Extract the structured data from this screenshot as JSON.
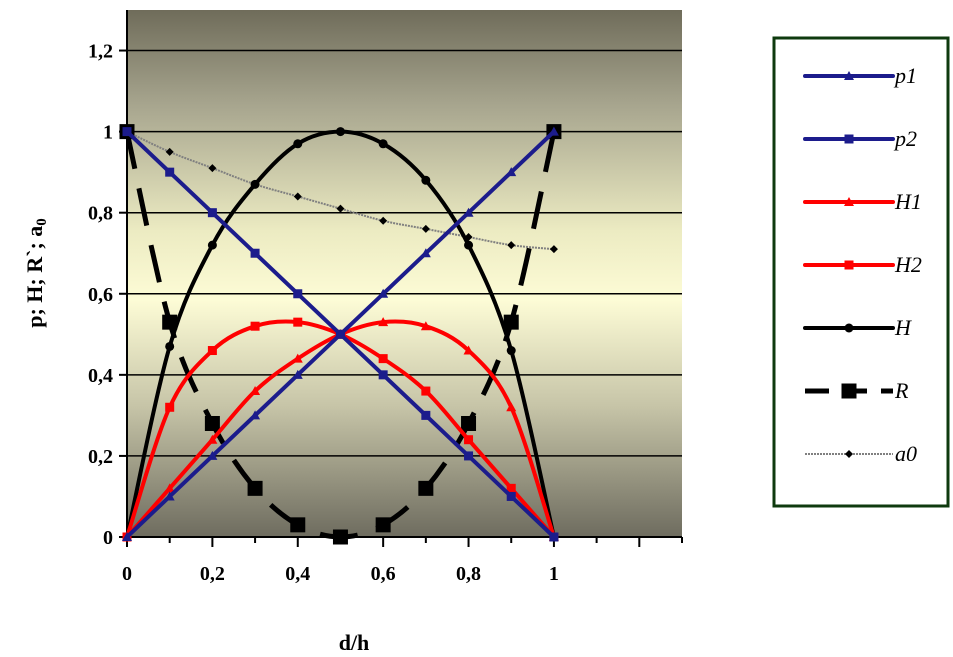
{
  "chart_data": {
    "type": "line",
    "title": "",
    "xlabel": "d/h",
    "ylabel_parts": [
      "p;  H;  R`; a",
      "0"
    ],
    "xlim": [
      0,
      1.3
    ],
    "ylim": [
      0,
      1.3
    ],
    "x_ticks": [
      0,
      0.2,
      0.4,
      0.6,
      0.8,
      1
    ],
    "x_tick_labels": [
      "0",
      "0,2",
      "0,4",
      "0,6",
      "0,8",
      "1"
    ],
    "y_ticks": [
      0,
      0.2,
      0.4,
      0.6,
      0.8,
      1,
      1.2
    ],
    "y_tick_labels": [
      "0",
      "0,2",
      "0,4",
      "0,6",
      "0,8",
      "1",
      "1,2"
    ],
    "grid": "horizontal",
    "legend_position": "right",
    "colors": {
      "blue": "#1c1c8c",
      "red": "#ff0000",
      "black": "#000000",
      "gray": "#808080"
    },
    "x": [
      0,
      0.1,
      0.2,
      0.3,
      0.4,
      0.5,
      0.6,
      0.7,
      0.8,
      0.9,
      1.0
    ],
    "series": [
      {
        "name": "p1",
        "color": "#1c1c8c",
        "marker": "triangle",
        "style": "solid",
        "width": 4,
        "values": [
          0,
          0.1,
          0.2,
          0.3,
          0.4,
          0.5,
          0.6,
          0.7,
          0.8,
          0.9,
          1.0
        ]
      },
      {
        "name": "p2",
        "color": "#1c1c8c",
        "marker": "square",
        "style": "solid",
        "width": 4,
        "values": [
          1.0,
          0.9,
          0.8,
          0.7,
          0.6,
          0.5,
          0.4,
          0.3,
          0.2,
          0.1,
          0
        ]
      },
      {
        "name": "H1",
        "color": "#ff0000",
        "marker": "triangle",
        "style": "solid",
        "width": 4,
        "values": [
          0,
          0.12,
          0.24,
          0.36,
          0.44,
          0.5,
          0.53,
          0.52,
          0.46,
          0.32,
          0
        ]
      },
      {
        "name": "H2",
        "color": "#ff0000",
        "marker": "square",
        "style": "solid",
        "width": 4,
        "values": [
          0,
          0.32,
          0.46,
          0.52,
          0.53,
          0.5,
          0.44,
          0.36,
          0.24,
          0.12,
          0
        ]
      },
      {
        "name": "H",
        "color": "#000000",
        "marker": "circle",
        "style": "solid",
        "width": 4,
        "values": [
          0,
          0.47,
          0.72,
          0.87,
          0.97,
          1.0,
          0.97,
          0.88,
          0.72,
          0.46,
          0
        ]
      },
      {
        "name": "R",
        "color": "#000000",
        "marker": "bigsquare",
        "style": "dashed",
        "width": 5,
        "values": [
          1.0,
          0.53,
          0.28,
          0.12,
          0.03,
          0,
          0.03,
          0.12,
          0.28,
          0.53,
          1.0
        ]
      },
      {
        "name": "a0",
        "color": "#808080",
        "marker": "diamond",
        "style": "dotted",
        "width": 2,
        "values": [
          1.0,
          0.95,
          0.91,
          0.87,
          0.84,
          0.81,
          0.78,
          0.76,
          0.74,
          0.72,
          0.71
        ]
      }
    ]
  }
}
